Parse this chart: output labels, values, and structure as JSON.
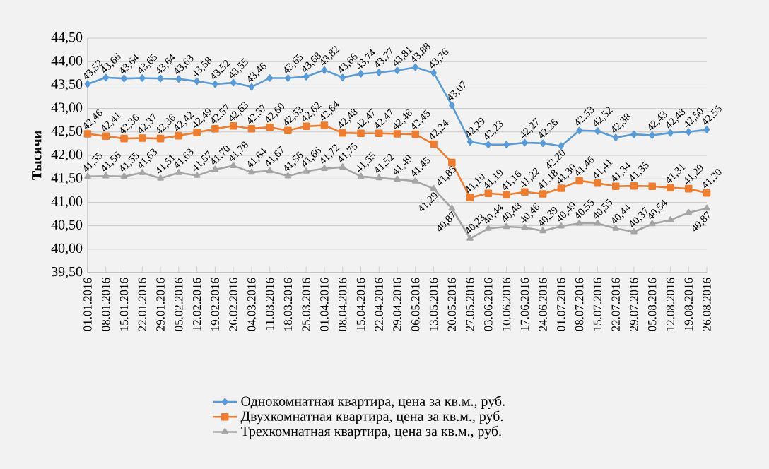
{
  "chart_data": {
    "type": "line",
    "ylabel": "Тысячи",
    "categories": [
      "01.01.2016",
      "08.01.2016",
      "15.01.2016",
      "22.01.2016",
      "29.01.2016",
      "05.02.2016",
      "12.02.2016",
      "19.02.2016",
      "26.02.2016",
      "04.03.2016",
      "11.03.2016",
      "18.03.2016",
      "25.03.2016",
      "01.04.2016",
      "08.04.2016",
      "15.04.2016",
      "22.04.2016",
      "29.04.2016",
      "06.05.2016",
      "13.05.2016",
      "20.05.2016",
      "27.05.2016",
      "03.06.2016",
      "10.06.2016",
      "17.06.2016",
      "24.06.2016",
      "01.07.2016",
      "08.07.2016",
      "15.07.2016",
      "22.07.2016",
      "29.07.2016",
      "05.08.2016",
      "12.08.2016",
      "19.08.2016",
      "26.08.2016"
    ],
    "series": [
      {
        "name": "Однокомнатная квартира, цена за кв.м., руб.",
        "color": "#5b9bd5",
        "marker": "diamond",
        "values": [
          43.52,
          43.66,
          43.64,
          43.65,
          43.64,
          43.63,
          43.58,
          43.52,
          43.55,
          43.46,
          43.65,
          43.65,
          43.68,
          43.82,
          43.66,
          43.74,
          43.77,
          43.81,
          43.88,
          43.76,
          43.07,
          42.29,
          42.23,
          42.23,
          42.27,
          42.26,
          42.2,
          42.53,
          42.52,
          42.38,
          42.45,
          42.43,
          42.48,
          42.5,
          42.55
        ],
        "value_labels": [
          "43,52",
          "43,66",
          "43,64",
          "43,65",
          "43,64",
          "43,63",
          "43,58",
          "43,52",
          "43,55",
          "43,46",
          null,
          "43,65",
          "43,68",
          "43,82",
          "43,66",
          "43,74",
          "43,77",
          "43,81",
          "43,88",
          "43,76",
          "43,07",
          "42,29",
          "42,23",
          null,
          "42,27",
          "42,26",
          "42,20",
          "42,53",
          "42,52",
          "42,38",
          null,
          "42,43",
          "42,48",
          "42,50",
          "42,55"
        ]
      },
      {
        "name": "Двухкомнатная квартира, цена за кв.м., руб.",
        "color": "#ed7d31",
        "marker": "square",
        "values": [
          42.46,
          42.41,
          42.36,
          42.37,
          42.36,
          42.42,
          42.49,
          42.57,
          42.63,
          42.57,
          42.6,
          42.53,
          42.62,
          42.64,
          42.48,
          42.47,
          42.47,
          42.46,
          42.45,
          42.24,
          41.85,
          41.1,
          41.19,
          41.16,
          41.22,
          41.18,
          41.3,
          41.46,
          41.41,
          41.34,
          41.35,
          41.34,
          41.31,
          41.29,
          41.2
        ],
        "value_labels": [
          "42,46",
          "42,41",
          "42,36",
          "42,37",
          "42,36",
          "42,42",
          "42,49",
          "42,57",
          "42,63",
          "42,57",
          "42,60",
          "42,53",
          "42,62",
          "42,64",
          "42,48",
          "42,47",
          "42,47",
          "42,46",
          "42,45",
          "42,24",
          "41,85",
          "41,10",
          "41,19",
          "41,16",
          "41,22",
          "41,18",
          "41,30",
          "41,46",
          "41,41",
          "41,34",
          "41,35",
          null,
          "41,31",
          "41,29",
          "41,20"
        ]
      },
      {
        "name": "Трехкомнатная квартира, цена за кв.м., руб.",
        "color": "#a5a5a5",
        "marker": "triangle",
        "values": [
          41.55,
          41.56,
          41.55,
          41.63,
          41.51,
          41.63,
          41.57,
          41.7,
          41.78,
          41.64,
          41.67,
          41.56,
          41.66,
          41.72,
          41.75,
          41.55,
          41.52,
          41.49,
          41.45,
          41.29,
          40.87,
          40.23,
          40.44,
          40.48,
          40.46,
          40.39,
          40.49,
          40.55,
          40.55,
          40.44,
          40.37,
          40.54,
          40.62,
          40.78,
          40.87
        ],
        "value_labels": [
          "41,55",
          "41,56",
          "41,55",
          "41,63",
          "41,51",
          "41,63",
          "41,57",
          "41,70",
          "41,78",
          "41,64",
          "41,67",
          "41,56",
          "41,66",
          "41,72",
          "41,75",
          "41,55",
          "41,52",
          "41,49",
          "41,45",
          "41,29",
          "40,87",
          "40,23",
          "40,44",
          "40,48",
          "40,46",
          "40,39",
          "40,49",
          "40,55",
          "40,55",
          "40,44",
          "40,37",
          "40,54",
          null,
          null,
          "40,87"
        ]
      }
    ],
    "ylim": [
      39.5,
      44.5
    ],
    "yticks": [
      {
        "value": 39.5,
        "label": "39,50"
      },
      {
        "value": 40.0,
        "label": "40,00"
      },
      {
        "value": 40.5,
        "label": "40,50"
      },
      {
        "value": 41.0,
        "label": "41,00"
      },
      {
        "value": 41.5,
        "label": "41,50"
      },
      {
        "value": 42.0,
        "label": "42,00"
      },
      {
        "value": 42.5,
        "label": "42,50"
      },
      {
        "value": 43.0,
        "label": "43,00"
      },
      {
        "value": 43.5,
        "label": "43,50"
      },
      {
        "value": 44.0,
        "label": "44,00"
      },
      {
        "value": 44.5,
        "label": "44,50"
      }
    ],
    "grid": "y",
    "legend": "bottom",
    "line_style": "solid"
  }
}
